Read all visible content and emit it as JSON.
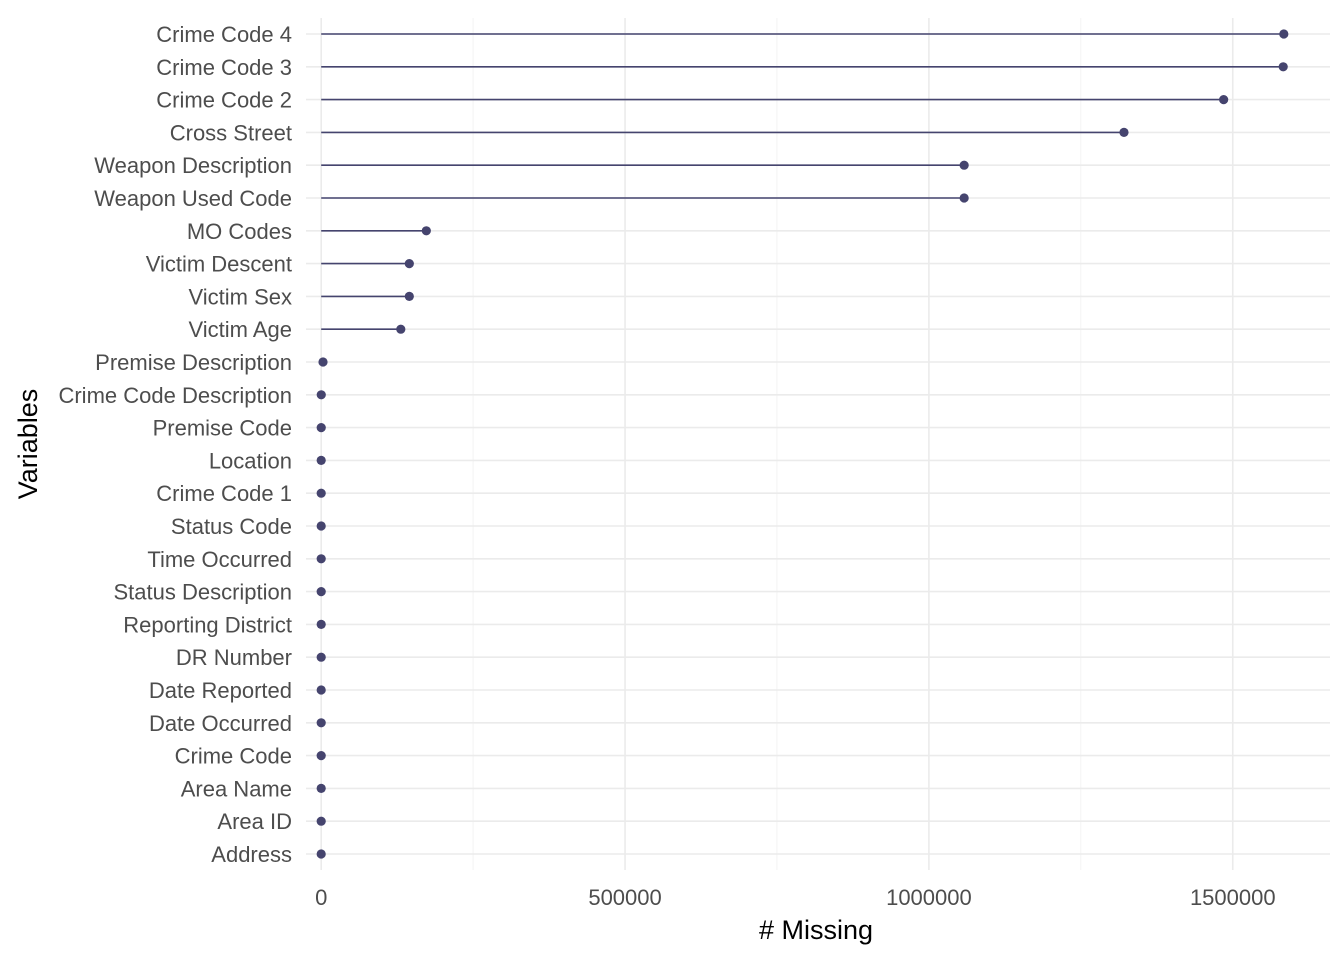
{
  "chart_data": {
    "type": "lollipop",
    "xlabel": "# Missing",
    "ylabel": "Variables",
    "xlim": [
      -25000,
      1660000
    ],
    "x_ticks": [
      0,
      500000,
      1000000,
      1500000
    ],
    "x_tick_labels": [
      "0",
      "500000",
      "1000000",
      "1500000"
    ],
    "grid": true,
    "colors": {
      "series": "#45446e"
    },
    "categories": [
      "Crime Code 4",
      "Crime Code 3",
      "Crime Code 2",
      "Cross Street",
      "Weapon Description",
      "Weapon Used Code",
      "MO Codes",
      "Victim Descent",
      "Victim Sex",
      "Victim Age",
      "Premise Description",
      "Crime Code Description",
      "Premise Code",
      "Location",
      "Crime Code 1",
      "Status Code",
      "Time Occurred",
      "Status Description",
      "Reporting District",
      "DR Number",
      "Date Reported",
      "Date Occurred",
      "Crime Code",
      "Area Name",
      "Area ID",
      "Address"
    ],
    "values": [
      1584000,
      1583000,
      1485000,
      1321000,
      1058000,
      1058000,
      173000,
      145000,
      145000,
      131000,
      3000,
      100,
      50,
      0,
      0,
      0,
      0,
      0,
      0,
      0,
      0,
      0,
      0,
      0,
      0,
      0
    ]
  }
}
